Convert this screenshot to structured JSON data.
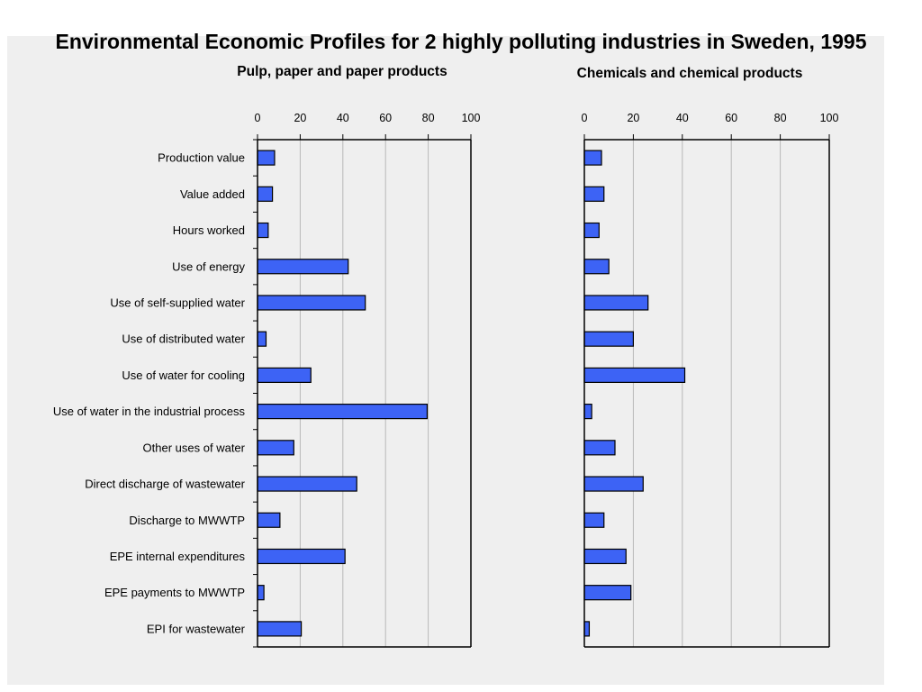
{
  "title": "Environmental Economic Profiles for 2 highly polluting industries in Sweden, 1995",
  "chart_data": {
    "type": "bar",
    "orientation": "horizontal",
    "xlim": [
      0,
      100
    ],
    "xticks": [
      0,
      20,
      40,
      60,
      80,
      100
    ],
    "grid": true,
    "bar_color": "#3d63f5",
    "categories": [
      "Production value",
      "Value added",
      "Hours worked",
      "Use of energy",
      "Use of self-supplied water",
      "Use of distributed water",
      "Use of water for cooling",
      "Use of water in the industrial process",
      "Other uses of water",
      "Direct discharge of wastewater",
      "Discharge to MWWTP",
      "EPE internal expenditures",
      "EPE payments to MWWTP",
      "EPI for wastewater"
    ],
    "panels": [
      {
        "title": "Pulp, paper and paper products",
        "values": [
          8,
          7,
          5,
          42.5,
          50.5,
          4,
          25,
          79.5,
          17,
          46.5,
          10.5,
          41,
          3,
          20.5
        ]
      },
      {
        "title": "Chemicals and chemical products",
        "values": [
          7,
          8,
          6,
          10,
          26,
          20,
          41,
          3,
          12.5,
          24,
          8,
          17,
          19,
          2
        ]
      }
    ]
  }
}
